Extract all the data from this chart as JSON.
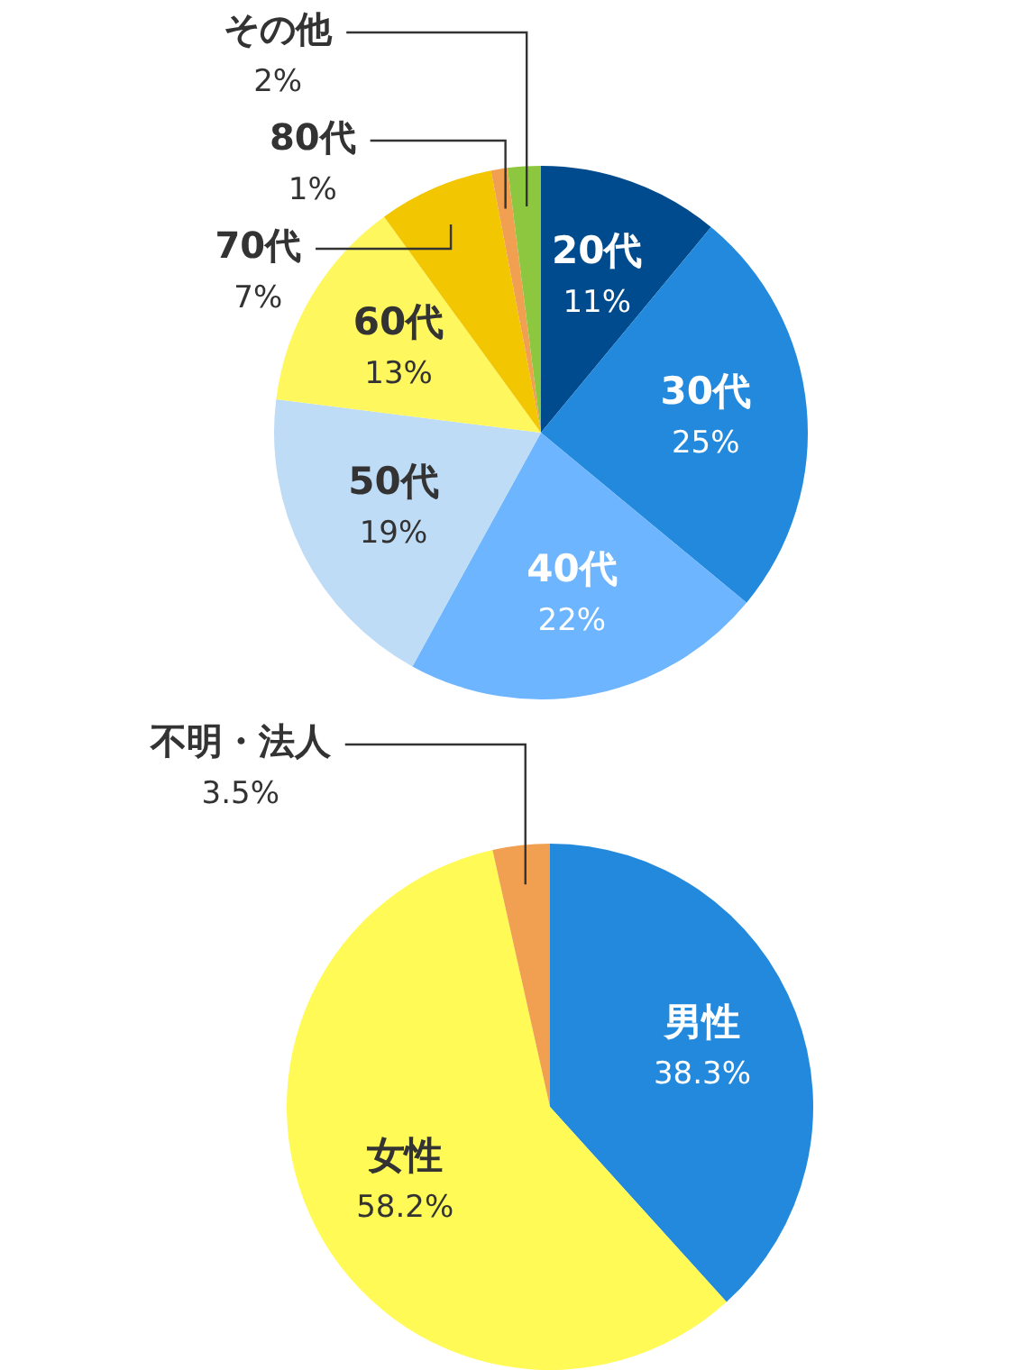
{
  "chart_data": [
    {
      "type": "pie",
      "categories": [
        "20代",
        "30代",
        "40代",
        "50代",
        "60代",
        "70代",
        "80代",
        "その他"
      ],
      "values": [
        11,
        25,
        22,
        19,
        13,
        7,
        1,
        2
      ],
      "value_labels": [
        "11%",
        "25%",
        "22%",
        "19%",
        "13%",
        "7%",
        "1%",
        "2%"
      ],
      "colors": [
        "#004b8d",
        "#2389dd",
        "#6db5ff",
        "#bedcf5",
        "#fff75e",
        "#f2c600",
        "#f0a050",
        "#8dc63f"
      ],
      "legend": false
    },
    {
      "type": "pie",
      "categories": [
        "男性",
        "女性",
        "不明・法人"
      ],
      "values": [
        38.3,
        58.2,
        3.5
      ],
      "value_labels": [
        "38.3%",
        "58.2%",
        "3.5%"
      ],
      "colors": [
        "#2389dd",
        "#fffa55",
        "#f0a050"
      ],
      "legend": false
    }
  ]
}
